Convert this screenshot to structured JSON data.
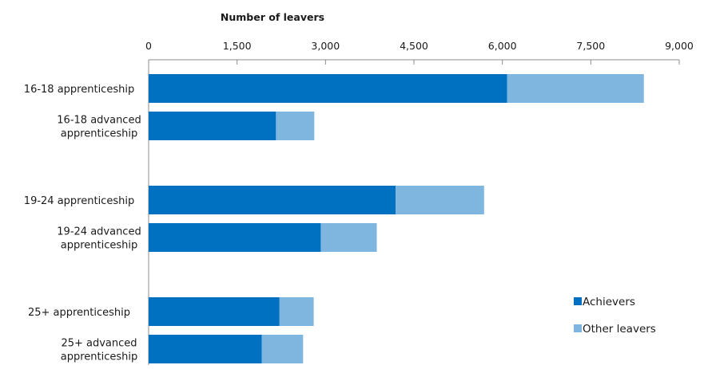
{
  "chart_data": {
    "type": "bar",
    "orientation": "horizontal",
    "stacked": true,
    "xlabel": "Number of leavers",
    "xlim": [
      0,
      9000
    ],
    "xticks": [
      0,
      1500,
      3000,
      4500,
      6000,
      7500,
      9000
    ],
    "xtick_labels": [
      "0",
      "1,500",
      "3,000",
      "4,500",
      "6,000",
      "7,500",
      "9,000"
    ],
    "x_axis_position": "top",
    "grid": false,
    "legend_position": "bottom-right",
    "categories": [
      [
        "16-18 apprenticeship"
      ],
      [
        "16-18 advanced",
        "apprenticeship"
      ],
      [
        "19-24 apprenticeship"
      ],
      [
        "19-24 advanced",
        "apprenticeship"
      ],
      [
        "25+ apprenticeship"
      ],
      [
        "25+ advanced",
        "apprenticeship"
      ]
    ],
    "groups": [
      [
        0,
        1
      ],
      [
        2,
        3
      ],
      [
        4,
        5
      ]
    ],
    "series": [
      {
        "name": "Achievers",
        "color": "#0070c0",
        "values": [
          6080,
          2160,
          4190,
          2920,
          2220,
          1920
        ]
      },
      {
        "name": "Other leavers",
        "color": "#7fb6df",
        "values": [
          2320,
          650,
          1500,
          950,
          580,
          700
        ]
      }
    ]
  }
}
